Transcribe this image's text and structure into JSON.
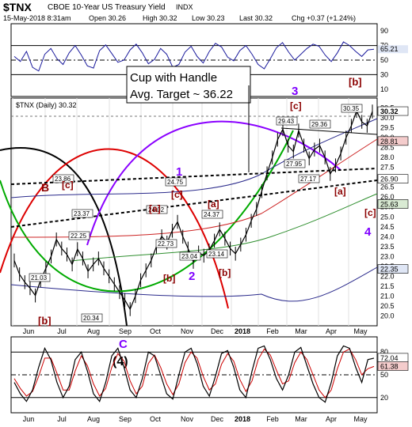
{
  "header": {
    "symbol": "$TNX",
    "name": "CBOE 10-Year US Treasury Yield",
    "exchange": "INDX",
    "date_line": "15-May-2018 8:31am",
    "open": "Open 30.26",
    "high": "High 30.32",
    "low": "Low 30.23",
    "last": "Last 30.32",
    "chg": "Chg +0.37 (+1.24%)"
  },
  "legend": "$TNX (Daily) 30.32",
  "annotation": {
    "line1": "Cup with Handle",
    "line2": "Avg. Target ~ 36.22"
  },
  "colors": {
    "price": "#000000",
    "accent_red": "#cc0000",
    "purple": "#7f00ff",
    "green": "#00aa00",
    "indicator_blue": "#1a1a9c"
  },
  "chart_data": [
    {
      "type": "line",
      "panel": "upper-indicator",
      "y_ticks": [
        "90",
        "70",
        "50",
        "30",
        "10"
      ],
      "last_value_label": "65.21",
      "ylim": [
        0,
        100
      ],
      "values": [
        55,
        48,
        62,
        40,
        35,
        58,
        66,
        52,
        44,
        60,
        70,
        57,
        42,
        39,
        63,
        71,
        59,
        47,
        50,
        64,
        72,
        60,
        45,
        51,
        66,
        58,
        40,
        44,
        61,
        69,
        55,
        46,
        62,
        73,
        68,
        54,
        49,
        63,
        70,
        58,
        44,
        38,
        52,
        67,
        74,
        61,
        50,
        58,
        66,
        72,
        69,
        57,
        48,
        60,
        75,
        70,
        62,
        55,
        64,
        65
      ]
    },
    {
      "type": "line",
      "panel": "price",
      "title": "$TNX (Daily) 30.32",
      "y_ticks": [
        "30.5",
        "30.0",
        "29.5",
        "29.0",
        "28.5",
        "28.0",
        "27.5",
        "27.0",
        "26.5",
        "26.0",
        "25.5",
        "25.0",
        "24.5",
        "24.0",
        "23.5",
        "23.0",
        "22.5",
        "22.0",
        "21.5",
        "21.0",
        "20.5",
        "20.0"
      ],
      "ylim": [
        19.5,
        31
      ],
      "x_ticks": [
        "Jun",
        "Jul",
        "Aug",
        "Sep",
        "Oct",
        "Nov",
        "Dec",
        "2018",
        "Feb",
        "Mar",
        "Apr",
        "May"
      ],
      "right_labels": [
        "30.32",
        "28.81",
        "26.90",
        "25.63",
        "22.35"
      ],
      "price_labels": [
        "23.86",
        "23.37",
        "22.25",
        "21.03",
        "20.34",
        "24.02",
        "24.75",
        "22.73",
        "23.04",
        "24.37",
        "23.14",
        "29.43",
        "29.36",
        "27.95",
        "27.17",
        "30.35"
      ],
      "wave_labels": [
        "[b]",
        "[c]",
        "B",
        "[c]",
        "[a]",
        "[b]",
        "[a]",
        "[b]",
        "[c]",
        "[a]",
        "[c]",
        "[b]",
        "1",
        "2",
        "3",
        "4",
        "C",
        "(4)"
      ],
      "series": [
        {
          "values": [
            22.8,
            22.1,
            21.7,
            21.4,
            21.03,
            21.8,
            22.4,
            23.0,
            23.86,
            23.4,
            23.1,
            22.6,
            23.37,
            22.9,
            22.25,
            22.6,
            22.9,
            22.4,
            22.0,
            21.6,
            21.2,
            20.8,
            20.34,
            21.0,
            21.8,
            22.3,
            22.8,
            23.5,
            24.02,
            23.7,
            24.3,
            24.75,
            24.0,
            23.4,
            22.73,
            23.2,
            23.04,
            23.3,
            23.8,
            24.37,
            23.9,
            23.4,
            23.14,
            23.6,
            24.1,
            24.8,
            25.4,
            26.3,
            27.2,
            28.0,
            28.9,
            29.43,
            28.6,
            28.3,
            29.36,
            28.6,
            27.95,
            28.4,
            28.6,
            28.0,
            27.17,
            27.6,
            28.2,
            29.0,
            29.6,
            30.35,
            29.8,
            29.6,
            30.32
          ]
        }
      ]
    },
    {
      "type": "line",
      "panel": "lower-indicator",
      "y_ticks": [
        "80",
        "50",
        "20"
      ],
      "right_labels": [
        "72.04",
        "61.38"
      ],
      "ylim": [
        0,
        100
      ],
      "x_ticks": [
        "Jun",
        "Jul",
        "Aug",
        "Sep",
        "Oct",
        "Nov",
        "Dec",
        "2018",
        "Feb",
        "Mar",
        "Apr",
        "May"
      ],
      "series": [
        {
          "name": "fast",
          "values": [
            40,
            25,
            15,
            30,
            60,
            85,
            70,
            40,
            20,
            35,
            70,
            80,
            55,
            25,
            15,
            40,
            75,
            85,
            60,
            30,
            20,
            45,
            80,
            75,
            50,
            25,
            18,
            50,
            80,
            85,
            65,
            35,
            22,
            48,
            78,
            82,
            60,
            30,
            20,
            55,
            85,
            88,
            70,
            45,
            30,
            50,
            80,
            86,
            62,
            38,
            20,
            14,
            40,
            75,
            88,
            85,
            60,
            40,
            70,
            72
          ]
        },
        {
          "name": "slow",
          "values": [
            45,
            32,
            22,
            28,
            48,
            72,
            72,
            52,
            30,
            30,
            55,
            75,
            62,
            38,
            22,
            32,
            60,
            78,
            68,
            42,
            25,
            35,
            65,
            76,
            60,
            38,
            24,
            38,
            66,
            80,
            72,
            48,
            30,
            38,
            64,
            78,
            68,
            44,
            28,
            42,
            70,
            84,
            76,
            56,
            38,
            42,
            66,
            80,
            70,
            50,
            30,
            20,
            30,
            58,
            80,
            84,
            70,
            50,
            58,
            61
          ]
        }
      ]
    }
  ]
}
